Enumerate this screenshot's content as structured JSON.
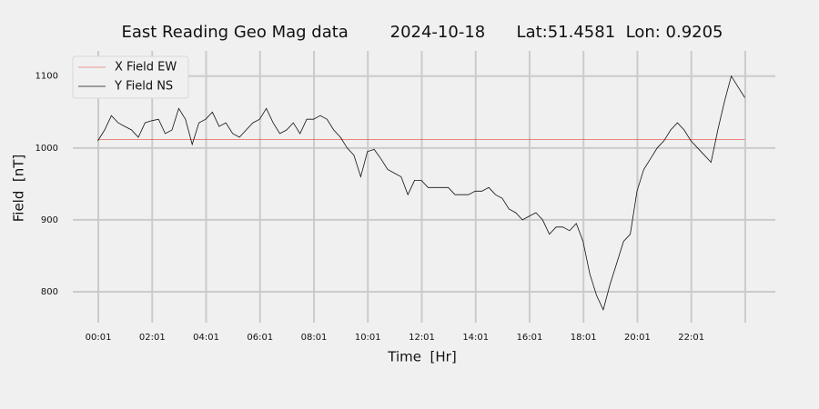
{
  "chart_data": {
    "type": "line",
    "title": "East Reading Geo Mag data        2024-10-18      Lat:51.4581  Lon: 0.9205",
    "xlabel": "Time  [Hr]",
    "ylabel": "Field  [nT]",
    "x": [
      0,
      0.25,
      0.5,
      0.75,
      1,
      1.25,
      1.5,
      1.75,
      2,
      2.25,
      2.5,
      2.75,
      3,
      3.25,
      3.5,
      3.75,
      4,
      4.25,
      4.5,
      4.75,
      5,
      5.25,
      5.5,
      5.75,
      6,
      6.25,
      6.5,
      6.75,
      7,
      7.25,
      7.5,
      7.75,
      8,
      8.25,
      8.5,
      8.75,
      9,
      9.25,
      9.5,
      9.75,
      10,
      10.25,
      10.5,
      10.75,
      11,
      11.25,
      11.5,
      11.75,
      12,
      12.25,
      12.5,
      12.75,
      13,
      13.25,
      13.5,
      13.75,
      14,
      14.25,
      14.5,
      14.75,
      15,
      15.25,
      15.5,
      15.75,
      16,
      16.25,
      16.5,
      16.75,
      17,
      17.25,
      17.5,
      17.75,
      18,
      18.25,
      18.5,
      18.75,
      19,
      19.25,
      19.5,
      19.75,
      20,
      20.25,
      20.5,
      20.75,
      21,
      21.25,
      21.5,
      21.75,
      22,
      22.25,
      22.5,
      22.75,
      23,
      23.25,
      23.5,
      23.75,
      24
    ],
    "series": [
      {
        "name": "X Field EW",
        "color": "#e8413e",
        "width": 0.6,
        "values": [
          1012,
          1012,
          1012,
          1012,
          1012,
          1012,
          1012,
          1012,
          1012,
          1012,
          1012,
          1012,
          1012,
          1012,
          1012,
          1012,
          1012,
          1012,
          1012,
          1012,
          1012,
          1012,
          1012,
          1012,
          1012,
          1012,
          1012,
          1012,
          1012,
          1012,
          1012,
          1012,
          1012,
          1012,
          1012,
          1012,
          1012,
          1012,
          1012,
          1012,
          1012,
          1012,
          1012,
          1012,
          1012,
          1012,
          1012,
          1012,
          1012,
          1012,
          1012,
          1012,
          1012,
          1012,
          1012,
          1012,
          1012,
          1012,
          1012,
          1012,
          1012,
          1012,
          1012,
          1012,
          1012,
          1012,
          1012,
          1012,
          1012,
          1012,
          1012,
          1012,
          1012,
          1012,
          1012,
          1012,
          1012,
          1012,
          1012,
          1012,
          1012,
          1012,
          1012,
          1012,
          1012,
          1012,
          1012,
          1012,
          1012,
          1012,
          1012,
          1012,
          1012,
          1012,
          1012,
          1012,
          1012
        ]
      },
      {
        "name": "Y Field NS",
        "color": "#111111",
        "width": 0.8,
        "values": [
          1010,
          1025,
          1045,
          1035,
          1030,
          1025,
          1015,
          1035,
          1038,
          1040,
          1020,
          1025,
          1055,
          1040,
          1005,
          1035,
          1040,
          1050,
          1030,
          1035,
          1020,
          1015,
          1025,
          1035,
          1040,
          1055,
          1035,
          1020,
          1025,
          1035,
          1020,
          1040,
          1040,
          1045,
          1040,
          1025,
          1015,
          1000,
          990,
          960,
          995,
          998,
          985,
          970,
          965,
          960,
          935,
          955,
          955,
          945,
          945,
          945,
          945,
          935,
          935,
          935,
          940,
          940,
          945,
          935,
          930,
          915,
          910,
          900,
          905,
          910,
          900,
          880,
          890,
          890,
          885,
          895,
          870,
          825,
          795,
          775,
          810,
          840,
          870,
          880,
          940,
          970,
          985,
          1000,
          1010,
          1025,
          1035,
          1025,
          1010,
          1000,
          990,
          980,
          1025,
          1065,
          1100,
          1085,
          1070
        ]
      }
    ],
    "xlim": [
      -1.2,
      25.2
    ],
    "ylim": [
      757,
      1130
    ],
    "xticks": [
      {
        "value": 0.0167,
        "label": "00:01"
      },
      {
        "value": 2.0167,
        "label": "02:01"
      },
      {
        "value": 4.0167,
        "label": "04:01"
      },
      {
        "value": 6.0167,
        "label": "06:01"
      },
      {
        "value": 8.0167,
        "label": "08:01"
      },
      {
        "value": 10.0167,
        "label": "10:01"
      },
      {
        "value": 12.0167,
        "label": "12:01"
      },
      {
        "value": 14.0167,
        "label": "14:01"
      },
      {
        "value": 16.0167,
        "label": "16:01"
      },
      {
        "value": 18.0167,
        "label": "18:01"
      },
      {
        "value": 20.0167,
        "label": "20:01"
      },
      {
        "value": 22.0167,
        "label": "22:01"
      },
      {
        "value": 24.0167,
        "label": null
      }
    ],
    "yticks": [
      800,
      900,
      1000,
      1100
    ],
    "grid": true,
    "legend": "upper-left"
  }
}
